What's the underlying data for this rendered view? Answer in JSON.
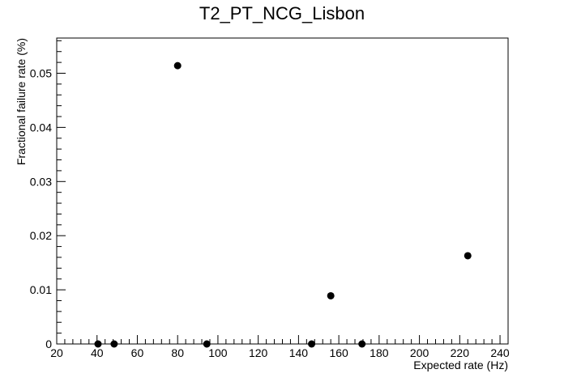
{
  "chart_data": {
    "type": "scatter",
    "title": "T2_PT_NCG_Lisbon",
    "xlabel": "Expected rate (Hz)",
    "ylabel": "Fractional failure rate (%)",
    "xlim": [
      20,
      244
    ],
    "ylim": [
      0,
      0.0565
    ],
    "grid": false,
    "x_ticks": [
      20,
      40,
      60,
      80,
      100,
      120,
      140,
      160,
      180,
      200,
      220,
      240
    ],
    "y_ticks": [
      0,
      0.01,
      0.02,
      0.03,
      0.04,
      0.05
    ],
    "x_tick_labels": [
      "20",
      "40",
      "60",
      "80",
      "100",
      "120",
      "140",
      "160",
      "180",
      "200",
      "220",
      "240"
    ],
    "y_tick_labels": [
      "0",
      "0.01",
      "0.02",
      "0.03",
      "0.04",
      "0.05"
    ],
    "marker_color": "#000000",
    "points": [
      {
        "x": 40.5,
        "y": 0
      },
      {
        "x": 48.5,
        "y": 0
      },
      {
        "x": 80.0,
        "y": 0.0514
      },
      {
        "x": 94.5,
        "y": 0
      },
      {
        "x": 146.5,
        "y": 0
      },
      {
        "x": 156.0,
        "y": 0.0089
      },
      {
        "x": 171.5,
        "y": 0
      },
      {
        "x": 224.0,
        "y": 0.0163
      }
    ]
  }
}
